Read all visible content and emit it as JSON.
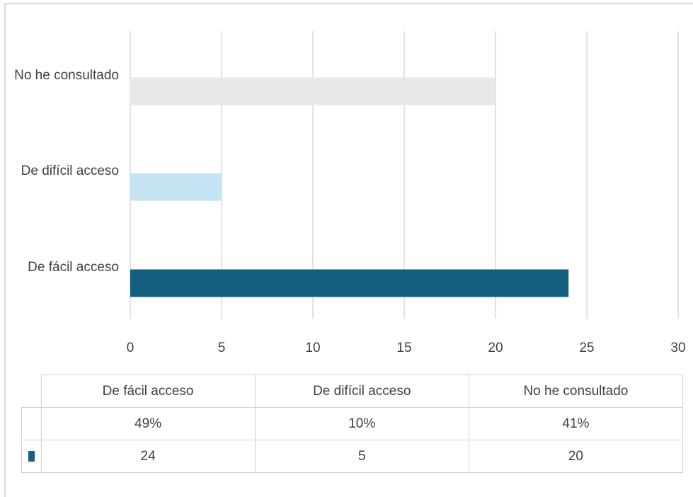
{
  "chart_data": {
    "type": "bar",
    "orientation": "horizontal",
    "categories": [
      "De fácil acceso",
      "De difícil acceso",
      "No he consultado"
    ],
    "series": [
      {
        "values": [
          24,
          5,
          20
        ],
        "colors": [
          "#155f81",
          "#c4e3f3",
          "#e8e8e8"
        ]
      }
    ],
    "xlim": [
      0,
      30
    ],
    "x_ticks": [
      0,
      5,
      10,
      15,
      20,
      25,
      30
    ],
    "grid": "vertical",
    "data_table": {
      "headers": [
        "De fácil acceso",
        "De difícil acceso",
        "No he consultado"
      ],
      "percent_row": [
        "49%",
        "10%",
        "41%"
      ],
      "count_row": [
        "24",
        "5",
        "20"
      ],
      "legend_key_color": "#155f81"
    }
  }
}
